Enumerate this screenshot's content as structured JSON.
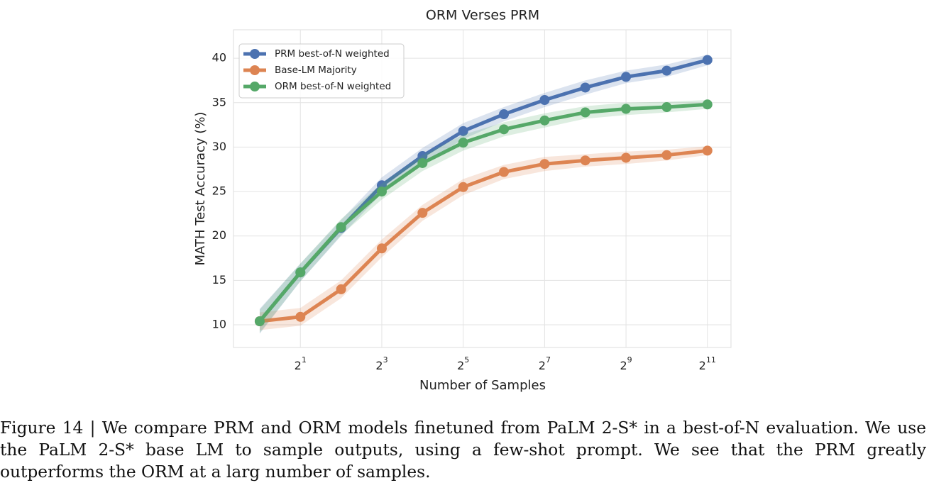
{
  "chart_data": {
    "type": "line",
    "title": "ORM Verses PRM",
    "xlabel": "Number of Samples",
    "ylabel": "MATH Test Accuracy (%)",
    "x": [
      1,
      2,
      4,
      8,
      16,
      32,
      64,
      128,
      256,
      512,
      1024,
      2048
    ],
    "xscale": "log2",
    "xlim": [
      0.64,
      3060
    ],
    "xticks": [
      {
        "value": 2,
        "label": "2",
        "exponent": "1"
      },
      {
        "value": 8,
        "label": "2",
        "exponent": "3"
      },
      {
        "value": 32,
        "label": "2",
        "exponent": "5"
      },
      {
        "value": 128,
        "label": "2",
        "exponent": "7"
      },
      {
        "value": 512,
        "label": "2",
        "exponent": "9"
      },
      {
        "value": 2048,
        "label": "2",
        "exponent": "11"
      }
    ],
    "ylim": [
      7.45,
      43.2
    ],
    "yticks": [
      10,
      15,
      20,
      25,
      30,
      35,
      40
    ],
    "grid": true,
    "legend": "upper left",
    "series": [
      {
        "name": "PRM best-of-N weighted",
        "color": "#4c72b0",
        "values": [
          10.4,
          15.9,
          20.9,
          25.7,
          29.0,
          31.8,
          33.7,
          35.3,
          36.7,
          37.9,
          38.6,
          39.8
        ],
        "errors": [
          1.4,
          1.0,
          0.9,
          0.9,
          0.9,
          0.9,
          0.8,
          0.8,
          0.8,
          0.7,
          0.7,
          0.6
        ]
      },
      {
        "name": "Base-LM Majority",
        "color": "#dd8452",
        "values": [
          10.4,
          10.9,
          14.0,
          18.6,
          22.6,
          25.5,
          27.2,
          28.1,
          28.5,
          28.8,
          29.1,
          29.6
        ],
        "errors": [
          1.0,
          1.0,
          1.0,
          1.0,
          0.9,
          0.9,
          0.8,
          0.8,
          0.7,
          0.7,
          0.6,
          0.5
        ]
      },
      {
        "name": "ORM best-of-N weighted",
        "color": "#55a868",
        "values": [
          10.4,
          15.9,
          21.0,
          25.0,
          28.2,
          30.5,
          32.0,
          33.0,
          33.9,
          34.3,
          34.5,
          34.8
        ],
        "errors": [
          1.3,
          1.0,
          0.9,
          0.9,
          0.9,
          0.9,
          0.8,
          0.8,
          0.7,
          0.7,
          0.6,
          0.5
        ]
      }
    ]
  },
  "caption": "Figure 14 | We compare PRM and ORM models finetuned from PaLM 2-S* in a best-of-N evaluation. We use the PaLM 2-S* base LM to sample outputs, using a few-shot prompt. We see that the PRM greatly outperforms the ORM at a larg number of samples."
}
